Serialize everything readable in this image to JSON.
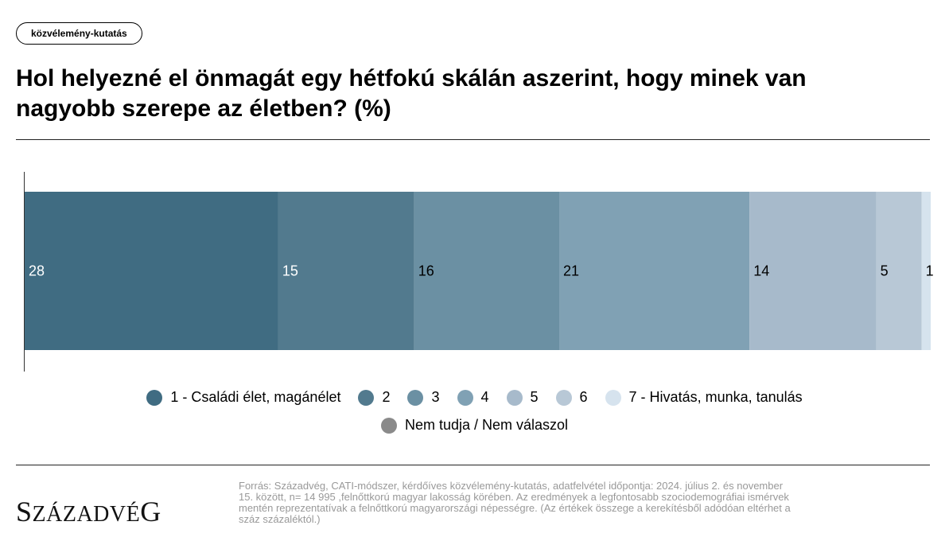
{
  "tag": "közvélemény-kutatás",
  "title": "Hol helyezné el önmagát egy hétfokú skálán aszerint, hogy minek van nagyobb szerepe az életben? (%)",
  "chart_data": {
    "type": "bar",
    "orientation": "horizontal-stacked-100",
    "categories": [
      ""
    ],
    "series": [
      {
        "name": "1 - Családi élet, magánélet",
        "values": [
          28
        ],
        "color": "#406c82",
        "label_color": "#ffffff"
      },
      {
        "name": "2",
        "values": [
          15
        ],
        "color": "#527a8e",
        "label_color": "#ffffff"
      },
      {
        "name": "3",
        "values": [
          16
        ],
        "color": "#6b90a3",
        "label_color": "#000000"
      },
      {
        "name": "4",
        "values": [
          21
        ],
        "color": "#80a1b4",
        "label_color": "#000000"
      },
      {
        "name": "5",
        "values": [
          14
        ],
        "color": "#a7bacb",
        "label_color": "#000000"
      },
      {
        "name": "6",
        "values": [
          5
        ],
        "color": "#b8c8d6",
        "label_color": "#000000"
      },
      {
        "name": "7 - Hivatás, munka, tanulás",
        "values": [
          1
        ],
        "color": "#d6e3ee",
        "label_color": "#000000"
      },
      {
        "name": "Nem tudja / Nem válaszol",
        "values": [
          0
        ],
        "color": "#8a8a8a",
        "label_color": "#000000"
      }
    ],
    "xlim": [
      0,
      100
    ],
    "grid": false,
    "legend_position": "bottom"
  },
  "legend": {
    "row1": [
      {
        "label": "1 - Családi élet, magánélet",
        "color": "#406c82"
      },
      {
        "label": "2",
        "color": "#527a8e"
      },
      {
        "label": "3",
        "color": "#6b90a3"
      },
      {
        "label": "4",
        "color": "#80a1b4"
      },
      {
        "label": "5",
        "color": "#a7bacb"
      },
      {
        "label": "6",
        "color": "#b8c8d6"
      },
      {
        "label": "7 - Hivatás, munka, tanulás",
        "color": "#d6e3ee"
      }
    ],
    "row2": [
      {
        "label": "Nem tudja / Nem válaszol",
        "color": "#8a8a8a"
      }
    ]
  },
  "logo": "Századvég",
  "source": "Forrás: Századvég, CATI-módszer, kérdőíves közvélemény-kutatás, adatfelvétel időpontja: 2024. július 2. és november 15. között, n= 14 995 ,felnőttkorú magyar lakosság körében. Az eredmények a legfontosabb szociodemográfiai ismérvek mentén reprezentatívak a felnőttkorú magyarországi népességre. (Az értékek összege a kerekítésből adódóan eltérhet a száz százaléktól.)"
}
